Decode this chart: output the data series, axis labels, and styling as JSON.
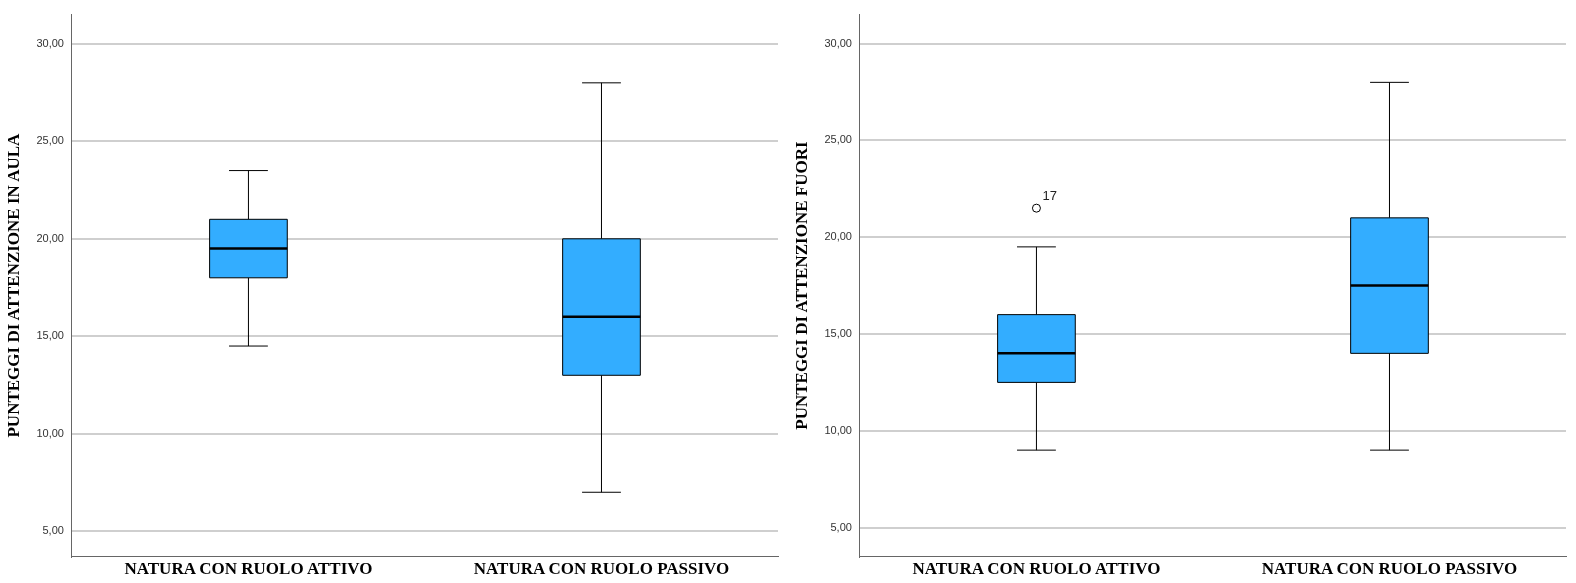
{
  "chart_data": [
    {
      "type": "box",
      "ylabel": "PUNTEGGI DI ATTENZIONE IN AULA",
      "categories": [
        "NATURA CON RUOLO ATTIVO",
        "NATURA CON RUOLO PASSIVO"
      ],
      "color": "#33adff",
      "boxes": [
        {
          "low": 14.5,
          "q1": 18,
          "median": 19.5,
          "q3": 21,
          "high": 23.5
        },
        {
          "low": 7,
          "q1": 13,
          "median": 16,
          "q3": 20,
          "high": 28
        }
      ],
      "ylim": [
        3.7,
        31.5
      ],
      "yticks": [
        {
          "value": 5,
          "label": "5,00"
        },
        {
          "value": 10,
          "label": "10,00"
        },
        {
          "value": 15,
          "label": "15,00"
        },
        {
          "value": 20,
          "label": "20,00"
        },
        {
          "value": 25,
          "label": "25,00"
        },
        {
          "value": 30,
          "label": "30,00"
        }
      ],
      "grid": "y"
    },
    {
      "type": "box",
      "ylabel": "PUNTEGGI DI ATTENZIONE FUORI",
      "categories": [
        "NATURA CON RUOLO ATTIVO",
        "NATURA CON RUOLO PASSIVO"
      ],
      "color": "#33adff",
      "boxes": [
        {
          "low": 9,
          "q1": 12.5,
          "median": 14,
          "q3": 16,
          "high": 19.5,
          "outliers": [
            21.5
          ]
        },
        {
          "low": 9,
          "q1": 14,
          "median": 17.5,
          "q3": 21,
          "high": 28
        }
      ],
      "annotations": [
        "17"
      ],
      "ylim": [
        3.5,
        31.5
      ],
      "yticks": [
        {
          "value": 5,
          "label": "5,00"
        },
        {
          "value": 10,
          "label": "10,00"
        },
        {
          "value": 15,
          "label": "15,00"
        },
        {
          "value": 20,
          "label": "20,00"
        },
        {
          "value": 25,
          "label": "25,00"
        },
        {
          "value": 30,
          "label": "30,00"
        }
      ],
      "grid": "y"
    }
  ]
}
